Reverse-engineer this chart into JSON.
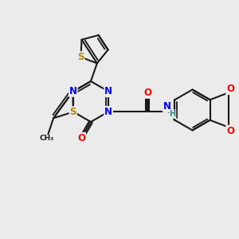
{
  "bg_color": "#EBEBEB",
  "bond_color": "#1a1a1a",
  "bond_width": 1.5,
  "atom_colors": {
    "S": "#B8860B",
    "N": "#0000FF",
    "O": "#FF0000",
    "H": "#2E8B8B",
    "C": "#1a1a1a"
  },
  "font_size": 8.5,
  "xlim": [
    0,
    10
  ],
  "ylim": [
    0,
    10
  ]
}
